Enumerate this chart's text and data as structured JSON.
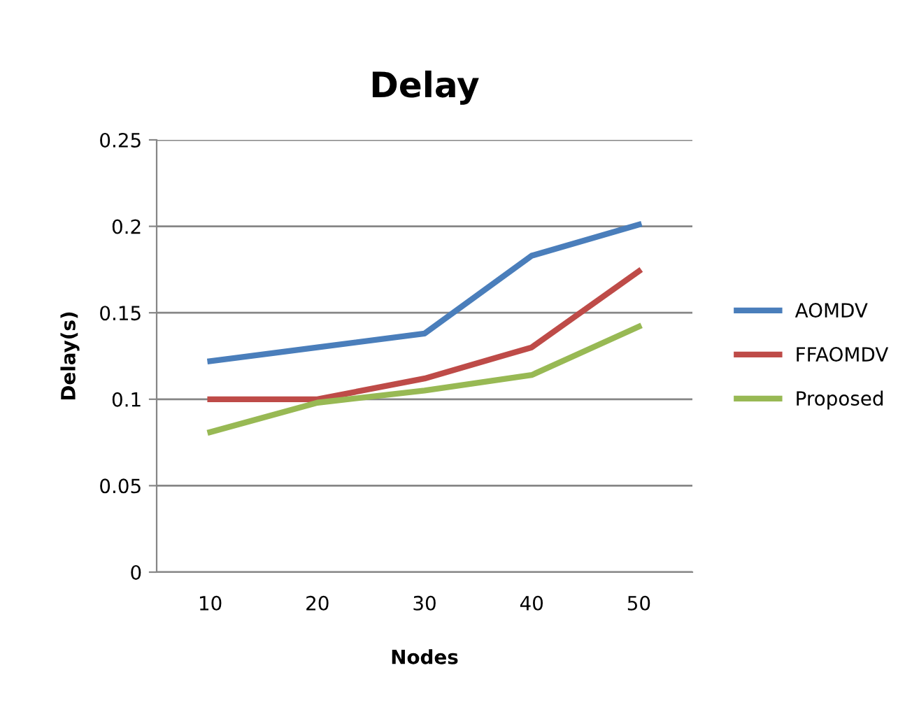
{
  "chart_data": {
    "type": "line",
    "title": "Delay",
    "xlabel": "Nodes",
    "ylabel": "Delay(s)",
    "categories": [
      "10",
      "20",
      "30",
      "40",
      "50"
    ],
    "series": [
      {
        "name": "AOMDV",
        "color": "#4a7ebb",
        "values": [
          0.122,
          0.13,
          0.138,
          0.183,
          0.201
        ]
      },
      {
        "name": "FFAOMDV",
        "color": "#be4b48",
        "values": [
          0.1,
          0.1,
          0.112,
          0.13,
          0.174
        ]
      },
      {
        "name": "Proposed",
        "color": "#98b954",
        "values": [
          0.081,
          0.098,
          0.105,
          0.114,
          0.142
        ]
      }
    ],
    "ylim": [
      0,
      0.25
    ],
    "yticks": [
      0,
      0.05,
      0.1,
      0.15,
      0.2,
      0.25
    ],
    "grid": "y",
    "legend": "right",
    "marker": "none",
    "line_style": "solid"
  }
}
